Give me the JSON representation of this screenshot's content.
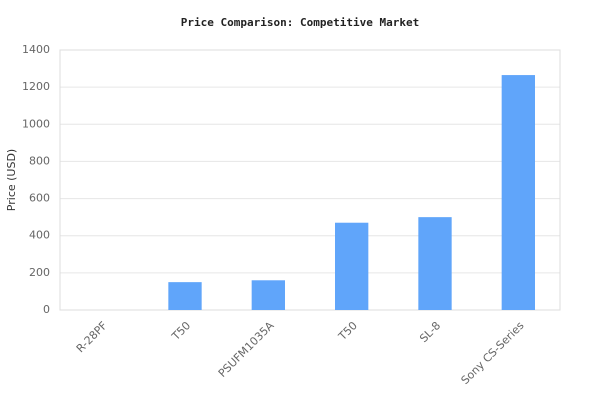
{
  "chart_data": {
    "type": "bar",
    "title": "Price Comparison: Competitive Market",
    "y_label": "Price (USD)",
    "categories": [
      "R-28PF",
      "T50",
      "PSUFM1035A",
      "T50",
      "SL-8",
      "Sony CS-Series"
    ],
    "values": [
      0,
      150,
      160,
      470,
      500,
      1265
    ],
    "color": "#60a5fa",
    "ylim": [
      0,
      1400
    ],
    "yticks": [
      0,
      200,
      400,
      600,
      800,
      1000,
      1200,
      1400
    ],
    "grid": true
  }
}
